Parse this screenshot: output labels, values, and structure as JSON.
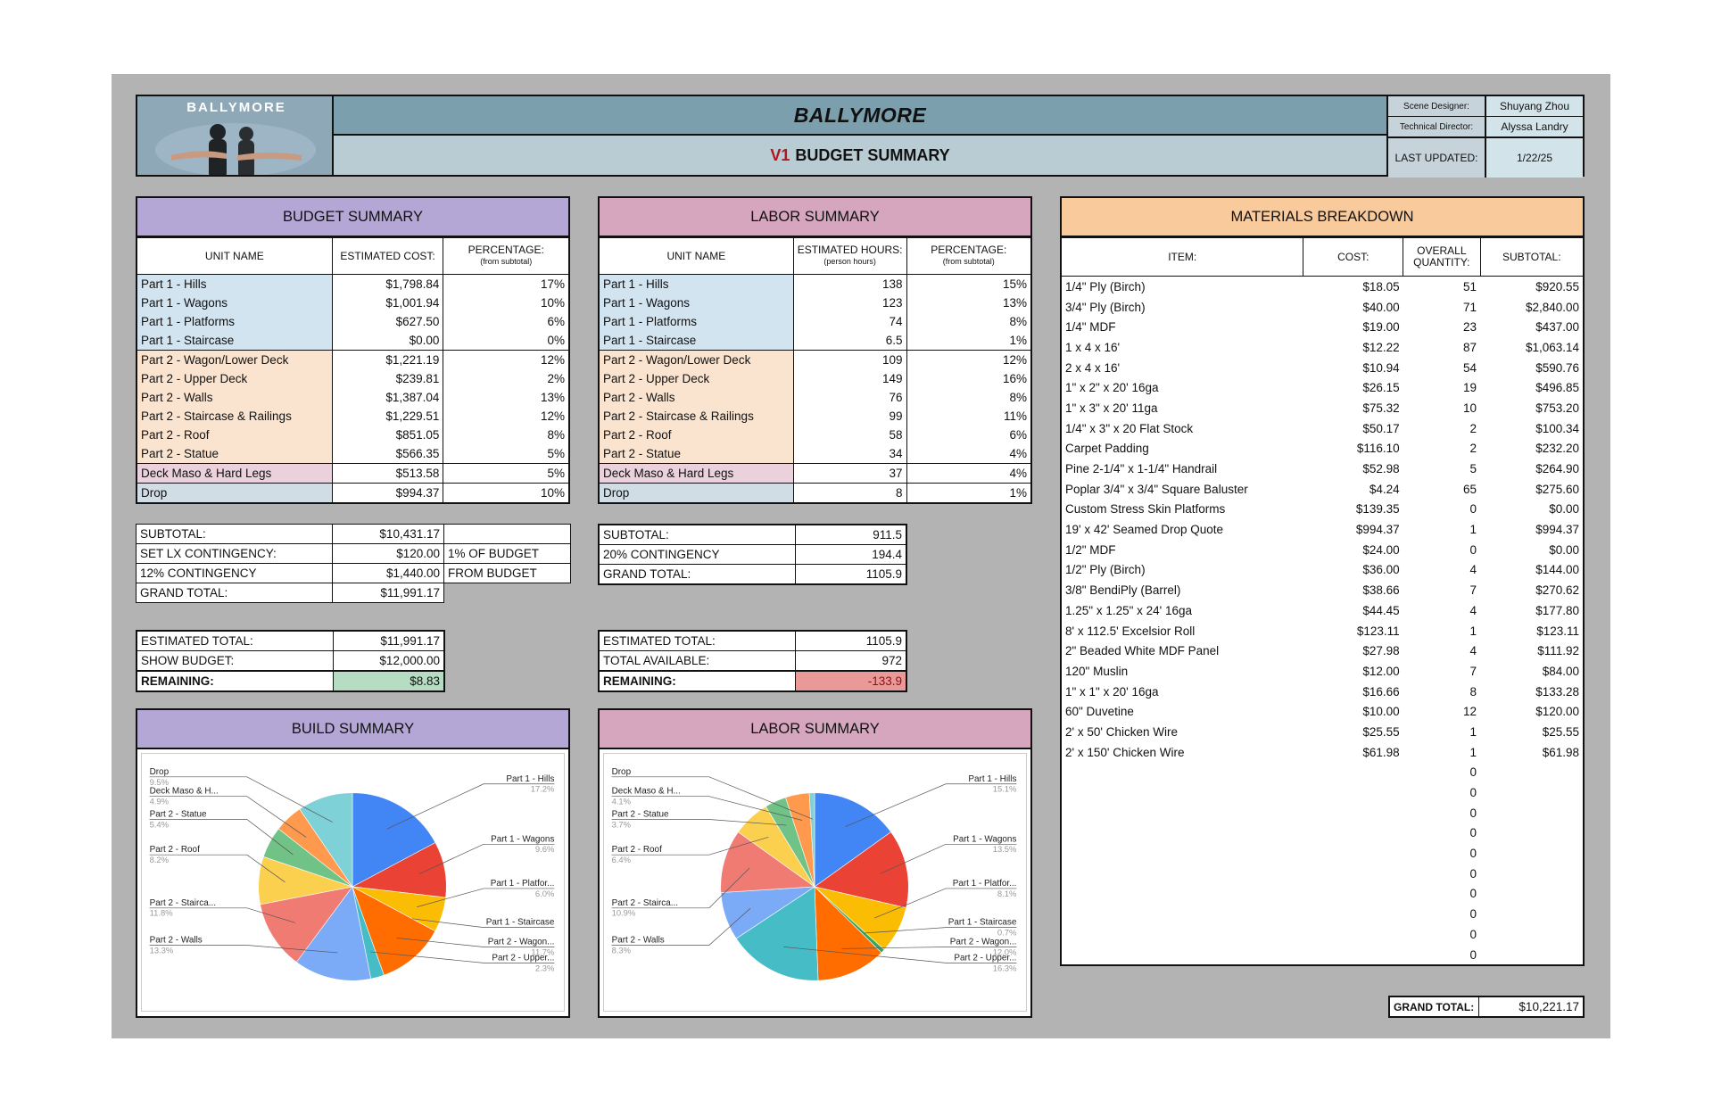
{
  "header": {
    "logo_text": "BALLYMORE",
    "title": "BALLYMORE",
    "subtitle_version": "V1",
    "subtitle_text": "BUDGET SUMMARY",
    "meta": [
      {
        "label": "Scene Designer:",
        "value": "Shuyang Zhou"
      },
      {
        "label": "Technical Director:",
        "value": "Alyssa Landry"
      },
      {
        "label": "LAST UPDATED:",
        "value": "1/22/25"
      }
    ]
  },
  "budget": {
    "title": "BUDGET SUMMARY",
    "col_unit": "UNIT NAME",
    "col_cost": "ESTIMATED COST:",
    "col_pct": "PERCENTAGE:",
    "col_pct_sub": "(from subtotal)",
    "rows": [
      {
        "name": "Part 1 - Hills",
        "cost": "$1,798.84",
        "pct": "17%",
        "group": "blue"
      },
      {
        "name": "Part 1 - Wagons",
        "cost": "$1,001.94",
        "pct": "10%",
        "group": "blue"
      },
      {
        "name": "Part 1 - Platforms",
        "cost": "$627.50",
        "pct": "6%",
        "group": "blue"
      },
      {
        "name": "Part 1 - Staircase",
        "cost": "$0.00",
        "pct": "0%",
        "group": "blue"
      },
      {
        "name": "Part 2 - Wagon/Lower Deck",
        "cost": "$1,221.19",
        "pct": "12%",
        "group": "peach"
      },
      {
        "name": "Part 2 - Upper Deck",
        "cost": "$239.81",
        "pct": "2%",
        "group": "peach"
      },
      {
        "name": "Part 2 - Walls",
        "cost": "$1,387.04",
        "pct": "13%",
        "group": "peach"
      },
      {
        "name": "Part 2 - Staircase & Railings",
        "cost": "$1,229.51",
        "pct": "12%",
        "group": "peach"
      },
      {
        "name": "Part 2 - Roof",
        "cost": "$851.05",
        "pct": "8%",
        "group": "peach"
      },
      {
        "name": "Part 2 - Statue",
        "cost": "$566.35",
        "pct": "5%",
        "group": "peach"
      },
      {
        "name": "Deck Maso & Hard Legs",
        "cost": "$513.58",
        "pct": "5%",
        "group": "pink"
      },
      {
        "name": "Drop",
        "cost": "$994.37",
        "pct": "10%",
        "group": "gray"
      }
    ],
    "subtotal_label": "SUBTOTAL:",
    "subtotal": "$10,431.17",
    "lx_label": "SET LX CONTINGENCY:",
    "lx": "$120.00",
    "lx_note": "1% OF BUDGET",
    "cont_label": "12% CONTINGENCY",
    "cont": "$1,440.00",
    "cont_note": "FROM BUDGET",
    "grand_label": "GRAND TOTAL:",
    "grand": "$11,991.17",
    "est_label": "ESTIMATED TOTAL:",
    "est": "$11,991.17",
    "show_label": "SHOW BUDGET:",
    "show": "$12,000.00",
    "rem_label": "REMAINING:",
    "rem": "$8.83"
  },
  "labor": {
    "title": "LABOR SUMMARY",
    "col_unit": "UNIT NAME",
    "col_hours": "ESTIMATED HOURS:",
    "col_hours_sub": "(person hours)",
    "col_pct": "PERCENTAGE:",
    "col_pct_sub": "(from subtotal)",
    "rows": [
      {
        "name": "Part 1 - Hills",
        "hours": "138",
        "pct": "15%",
        "group": "blue"
      },
      {
        "name": "Part 1 - Wagons",
        "hours": "123",
        "pct": "13%",
        "group": "blue"
      },
      {
        "name": "Part 1 - Platforms",
        "hours": "74",
        "pct": "8%",
        "group": "blue"
      },
      {
        "name": "Part 1 - Staircase",
        "hours": "6.5",
        "pct": "1%",
        "group": "blue"
      },
      {
        "name": "Part 2 - Wagon/Lower Deck",
        "hours": "109",
        "pct": "12%",
        "group": "peach"
      },
      {
        "name": "Part 2 - Upper Deck",
        "hours": "149",
        "pct": "16%",
        "group": "peach"
      },
      {
        "name": "Part 2 - Walls",
        "hours": "76",
        "pct": "8%",
        "group": "peach"
      },
      {
        "name": "Part 2 - Staircase & Railings",
        "hours": "99",
        "pct": "11%",
        "group": "peach"
      },
      {
        "name": "Part 2 - Roof",
        "hours": "58",
        "pct": "6%",
        "group": "peach"
      },
      {
        "name": "Part 2 - Statue",
        "hours": "34",
        "pct": "4%",
        "group": "peach"
      },
      {
        "name": "Deck Maso & Hard Legs",
        "hours": "37",
        "pct": "4%",
        "group": "pink"
      },
      {
        "name": "Drop",
        "hours": "8",
        "pct": "1%",
        "group": "gray"
      }
    ],
    "subtotal_label": "SUBTOTAL:",
    "subtotal": "911.5",
    "cont_label": "20% CONTINGENCY",
    "cont": "194.4",
    "grand_label": "GRAND TOTAL:",
    "grand": "1105.9",
    "est_label": "ESTIMATED TOTAL:",
    "est": "1105.9",
    "avail_label": "TOTAL AVAILABLE:",
    "avail": "972",
    "rem_label": "REMAINING:",
    "rem": "-133.9"
  },
  "materials": {
    "title": "MATERIALS BREAKDOWN",
    "col_item": "ITEM:",
    "col_cost": "COST:",
    "col_qty": "OVERALL QUANTITY:",
    "col_sub": "SUBTOTAL:",
    "rows": [
      {
        "item": "1/4\" Ply (Birch)",
        "cost": "$18.05",
        "qty": "51",
        "sub": "$920.55"
      },
      {
        "item": "3/4\" Ply (Birch)",
        "cost": "$40.00",
        "qty": "71",
        "sub": "$2,840.00"
      },
      {
        "item": "1/4\" MDF",
        "cost": "$19.00",
        "qty": "23",
        "sub": "$437.00"
      },
      {
        "item": "1 x 4 x 16'",
        "cost": "$12.22",
        "qty": "87",
        "sub": "$1,063.14"
      },
      {
        "item": "2 x 4 x 16'",
        "cost": "$10.94",
        "qty": "54",
        "sub": "$590.76"
      },
      {
        "item": "1\" x 2\" x 20' 16ga",
        "cost": "$26.15",
        "qty": "19",
        "sub": "$496.85"
      },
      {
        "item": "1\" x 3\" x 20' 11ga",
        "cost": "$75.32",
        "qty": "10",
        "sub": "$753.20"
      },
      {
        "item": "1/4\" x 3\" x 20 Flat Stock",
        "cost": "$50.17",
        "qty": "2",
        "sub": "$100.34"
      },
      {
        "item": "Carpet Padding",
        "cost": "$116.10",
        "qty": "2",
        "sub": "$232.20"
      },
      {
        "item": "Pine 2-1/4\" x 1-1/4\" Handrail",
        "cost": "$52.98",
        "qty": "5",
        "sub": "$264.90"
      },
      {
        "item": "Poplar 3/4\" x 3/4\" Square Baluster",
        "cost": "$4.24",
        "qty": "65",
        "sub": "$275.60"
      },
      {
        "item": "Custom Stress Skin Platforms",
        "cost": "$139.35",
        "qty": "0",
        "sub": "$0.00"
      },
      {
        "item": "19' x 42' Seamed Drop Quote",
        "cost": "$994.37",
        "qty": "1",
        "sub": "$994.37"
      },
      {
        "item": "1/2\" MDF",
        "cost": "$24.00",
        "qty": "0",
        "sub": "$0.00"
      },
      {
        "item": "1/2\" Ply (Birch)",
        "cost": "$36.00",
        "qty": "4",
        "sub": "$144.00"
      },
      {
        "item": "3/8\" BendiPly (Barrel)",
        "cost": "$38.66",
        "qty": "7",
        "sub": "$270.62"
      },
      {
        "item": "1.25\" x 1.25\" x 24' 16ga",
        "cost": "$44.45",
        "qty": "4",
        "sub": "$177.80"
      },
      {
        "item": "8' x 112.5' Excelsior Roll",
        "cost": "$123.11",
        "qty": "1",
        "sub": "$123.11"
      },
      {
        "item": "2\" Beaded White MDF Panel",
        "cost": "$27.98",
        "qty": "4",
        "sub": "$111.92"
      },
      {
        "item": "120\" Muslin",
        "cost": "$12.00",
        "qty": "7",
        "sub": "$84.00"
      },
      {
        "item": "1\" x 1\" x 20' 16ga",
        "cost": "$16.66",
        "qty": "8",
        "sub": "$133.28"
      },
      {
        "item": "60\" Duvetine",
        "cost": "$10.00",
        "qty": "12",
        "sub": "$120.00"
      },
      {
        "item": "2' x 50' Chicken Wire",
        "cost": "$25.55",
        "qty": "1",
        "sub": "$25.55"
      },
      {
        "item": "2' x 150' Chicken Wire",
        "cost": "$61.98",
        "qty": "1",
        "sub": "$61.98"
      },
      {
        "item": "",
        "cost": "",
        "qty": "0",
        "sub": ""
      },
      {
        "item": "",
        "cost": "",
        "qty": "0",
        "sub": ""
      },
      {
        "item": "",
        "cost": "",
        "qty": "0",
        "sub": ""
      },
      {
        "item": "",
        "cost": "",
        "qty": "0",
        "sub": ""
      },
      {
        "item": "",
        "cost": "",
        "qty": "0",
        "sub": ""
      },
      {
        "item": "",
        "cost": "",
        "qty": "0",
        "sub": ""
      },
      {
        "item": "",
        "cost": "",
        "qty": "0",
        "sub": ""
      },
      {
        "item": "",
        "cost": "",
        "qty": "0",
        "sub": ""
      },
      {
        "item": "",
        "cost": "",
        "qty": "0",
        "sub": ""
      },
      {
        "item": "",
        "cost": "",
        "qty": "0",
        "sub": ""
      }
    ],
    "grand_label": "GRAND TOTAL:",
    "grand": "$10,221.17"
  },
  "charts": {
    "build_title": "BUILD SUMMARY",
    "labor_title": "LABOR SUMMARY"
  },
  "chart_data": [
    {
      "type": "pie",
      "title": "BUILD SUMMARY",
      "slices": [
        {
          "label": "Part 1 - Hills",
          "value": 17.2,
          "pct": "17.2%",
          "color": "#4285f4"
        },
        {
          "label": "Part 1 - Wagons",
          "value": 9.6,
          "pct": "9.6%",
          "color": "#ea4335"
        },
        {
          "label": "Part 1 - Platfor...",
          "value": 6.0,
          "pct": "6.0%",
          "color": "#fbbc04"
        },
        {
          "label": "Part 1 - Staircase",
          "value": 0.0,
          "pct": "",
          "color": "#34a853"
        },
        {
          "label": "Part 2 - Wagon...",
          "value": 11.7,
          "pct": "11.7%",
          "color": "#ff6d01"
        },
        {
          "label": "Part 2 - Upper...",
          "value": 2.3,
          "pct": "2.3%",
          "color": "#46bdc6"
        },
        {
          "label": "Part 2 - Walls",
          "value": 13.3,
          "pct": "13.3%",
          "color": "#7baaf7"
        },
        {
          "label": "Part 2 - Stairca...",
          "value": 11.8,
          "pct": "11.8%",
          "color": "#f07b72"
        },
        {
          "label": "Part 2 - Roof",
          "value": 8.2,
          "pct": "8.2%",
          "color": "#fcd04f"
        },
        {
          "label": "Part 2 - Statue",
          "value": 5.4,
          "pct": "5.4%",
          "color": "#71c287"
        },
        {
          "label": "Deck Maso & H...",
          "value": 4.9,
          "pct": "4.9%",
          "color": "#ff994d"
        },
        {
          "label": "Drop",
          "value": 9.5,
          "pct": "9.5%",
          "color": "#7ed1d7"
        }
      ]
    },
    {
      "type": "pie",
      "title": "LABOR SUMMARY",
      "slices": [
        {
          "label": "Part 1 - Hills",
          "value": 15.1,
          "pct": "15.1%",
          "color": "#4285f4"
        },
        {
          "label": "Part 1 - Wagons",
          "value": 13.5,
          "pct": "13.5%",
          "color": "#ea4335"
        },
        {
          "label": "Part 1 - Platfor...",
          "value": 8.1,
          "pct": "8.1%",
          "color": "#fbbc04"
        },
        {
          "label": "Part 1 - Staircase",
          "value": 0.7,
          "pct": "0.7%",
          "color": "#34a853"
        },
        {
          "label": "Part 2 - Wagon...",
          "value": 12.0,
          "pct": "12.0%",
          "color": "#ff6d01"
        },
        {
          "label": "Part 2 - Upper...",
          "value": 16.3,
          "pct": "16.3%",
          "color": "#46bdc6"
        },
        {
          "label": "Part 2 - Walls",
          "value": 8.3,
          "pct": "8.3%",
          "color": "#7baaf7"
        },
        {
          "label": "Part 2 - Stairca...",
          "value": 10.9,
          "pct": "10.9%",
          "color": "#f07b72"
        },
        {
          "label": "Part 2 - Roof",
          "value": 6.4,
          "pct": "6.4%",
          "color": "#fcd04f"
        },
        {
          "label": "Part 2 - Statue",
          "value": 3.7,
          "pct": "3.7%",
          "color": "#71c287"
        },
        {
          "label": "Deck Maso & H...",
          "value": 4.1,
          "pct": "4.1%",
          "color": "#ff994d"
        },
        {
          "label": "Drop",
          "value": 0.9,
          "pct": "",
          "color": "#7ed1d7"
        }
      ]
    }
  ]
}
